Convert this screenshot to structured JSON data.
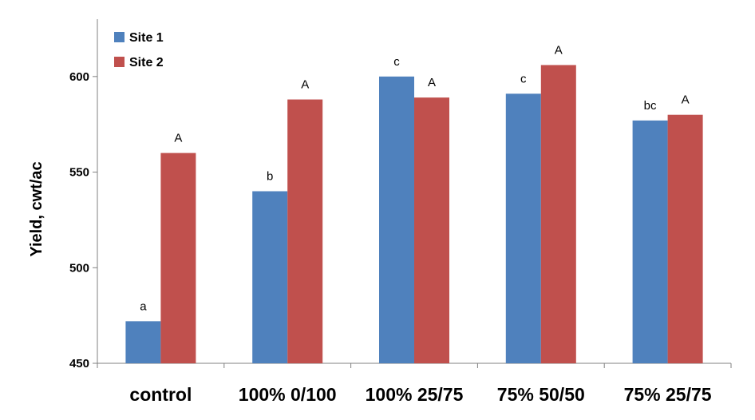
{
  "chart_data": {
    "type": "bar",
    "ylabel": "Yield, cwt/ac",
    "xlabel": "",
    "ylim": [
      450,
      630
    ],
    "yticks": [
      450,
      500,
      550,
      600
    ],
    "grid": false,
    "legend_position": "top-left",
    "categories": [
      "control",
      "100% 0/100",
      "100% 25/75",
      "75% 50/50",
      "75% 25/75"
    ],
    "series": [
      {
        "name": "Site 1",
        "color": "#4F81BD",
        "values": [
          472,
          540,
          600,
          591,
          577
        ],
        "labels": [
          "a",
          "b",
          "c",
          "c",
          "bc"
        ]
      },
      {
        "name": "Site 2",
        "color": "#C0504D",
        "values": [
          560,
          588,
          589,
          606,
          580
        ],
        "labels": [
          "A",
          "A",
          "A",
          "A",
          "A"
        ]
      }
    ]
  }
}
